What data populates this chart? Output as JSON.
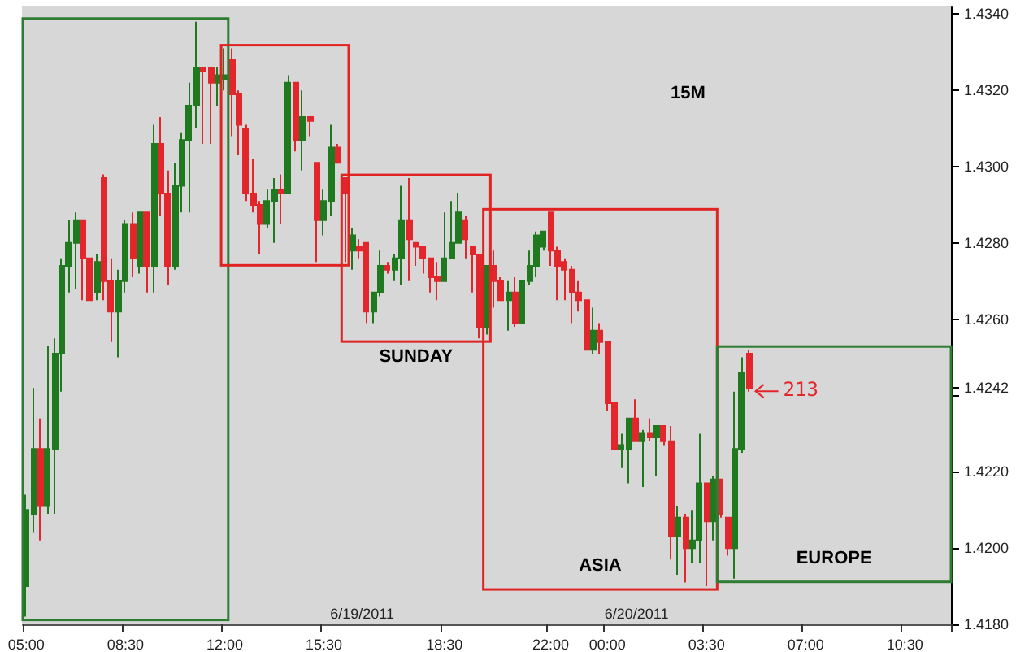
{
  "chart_data": {
    "type": "candlestick",
    "categories": [
      "05:00",
      null,
      null,
      null,
      null,
      null,
      null,
      null,
      null,
      null,
      null,
      null,
      null,
      null,
      "08:30",
      null,
      null,
      null,
      null,
      null,
      null,
      null,
      null,
      null,
      null,
      null,
      null,
      null,
      "12:00",
      null,
      null,
      null,
      null,
      null,
      null,
      null,
      null,
      null,
      null,
      null,
      null,
      null,
      "15:30",
      null,
      null,
      null,
      null,
      null,
      null,
      null,
      null,
      null,
      null,
      null,
      null,
      null,
      null,
      null,
      null,
      "18:30",
      null,
      null,
      null,
      null,
      null,
      null,
      null,
      null,
      null,
      null,
      null,
      null,
      null,
      null,
      "22:00",
      null,
      null,
      null,
      null,
      null,
      null,
      null,
      "00:00",
      null,
      null,
      null,
      null,
      null,
      null,
      null,
      null,
      null,
      null,
      null,
      null,
      null,
      "03:30",
      null,
      null,
      null,
      null,
      null,
      null,
      null,
      null,
      null,
      null,
      null,
      null,
      null,
      "07:00",
      null,
      null,
      null,
      null,
      null,
      null,
      null,
      null,
      null,
      null,
      null,
      null,
      null,
      "10:30",
      null,
      null,
      null,
      null,
      null,
      null
    ],
    "ohlc": [
      [
        1.419,
        1.4214,
        1.4182,
        1.421
      ],
      [
        1.4209,
        1.4242,
        1.4204,
        1.4226
      ],
      [
        1.4226,
        1.4234,
        1.4202,
        1.4211
      ],
      [
        1.4211,
        1.4253,
        1.4209,
        1.4226
      ],
      [
        1.4226,
        1.4255,
        1.4209,
        1.4251
      ],
      [
        1.4251,
        1.4276,
        1.4241,
        1.4274
      ],
      [
        1.4274,
        1.4286,
        1.4267,
        1.428
      ],
      [
        1.428,
        1.4288,
        1.4268,
        1.4286
      ],
      [
        1.4286,
        1.4286,
        1.4265,
        1.4276
      ],
      [
        1.4276,
        1.4276,
        1.4265,
        1.4265
      ],
      [
        1.4267,
        1.4277,
        1.4265,
        1.4275
      ],
      [
        1.4297,
        1.4298,
        1.4265,
        1.427
      ],
      [
        1.427,
        1.4276,
        1.4254,
        1.4262
      ],
      [
        1.4262,
        1.4273,
        1.425,
        1.427
      ],
      [
        1.427,
        1.4286,
        1.4267,
        1.4285
      ],
      [
        1.4285,
        1.4288,
        1.4271,
        1.4276
      ],
      [
        1.4274,
        1.4288,
        1.4272,
        1.4288
      ],
      [
        1.4288,
        1.4288,
        1.4267,
        1.4274
      ],
      [
        1.4274,
        1.4311,
        1.4267,
        1.4306
      ],
      [
        1.4306,
        1.4313,
        1.4287,
        1.4293
      ],
      [
        1.4293,
        1.4299,
        1.4269,
        1.4274
      ],
      [
        1.4274,
        1.4301,
        1.4273,
        1.4295
      ],
      [
        1.4295,
        1.4309,
        1.4288,
        1.4307
      ],
      [
        1.4307,
        1.4322,
        1.4288,
        1.4316
      ],
      [
        1.4316,
        1.4338,
        1.431,
        1.4326
      ],
      [
        1.4326,
        1.4326,
        1.4306,
        1.4325
      ],
      [
        1.4326,
        1.4326,
        1.4306,
        1.4322
      ],
      [
        1.4322,
        1.4326,
        1.4316,
        1.4324
      ],
      [
        1.4323,
        1.4331,
        1.432,
        1.4324
      ],
      [
        1.4328,
        1.4331,
        1.4308,
        1.4319
      ],
      [
        1.4319,
        1.432,
        1.4303,
        1.4311
      ],
      [
        1.431,
        1.4311,
        1.4291,
        1.4293
      ],
      [
        1.4293,
        1.4302,
        1.4288,
        1.429
      ],
      [
        1.429,
        1.4291,
        1.4277,
        1.4285
      ],
      [
        1.4285,
        1.4294,
        1.4284,
        1.4291
      ],
      [
        1.4291,
        1.4297,
        1.428,
        1.4294
      ],
      [
        1.4294,
        1.4298,
        1.4285,
        1.4293
      ],
      [
        1.4293,
        1.4324,
        1.4293,
        1.4322
      ],
      [
        1.4322,
        1.4322,
        1.4304,
        1.4307
      ],
      [
        1.4307,
        1.432,
        1.4299,
        1.4313
      ],
      [
        1.4313,
        1.4313,
        1.4308,
        1.4312
      ],
      [
        1.4301,
        1.4301,
        1.4275,
        1.4286
      ],
      [
        1.4286,
        1.4294,
        1.4282,
        1.4291
      ],
      [
        1.4291,
        1.4311,
        1.4287,
        1.4305
      ],
      [
        1.4305,
        1.4306,
        1.4301,
        1.4301
      ],
      [
        1.4297,
        1.4297,
        1.4275,
        1.4293
      ],
      [
        1.4278,
        1.4284,
        1.4273,
        1.4282
      ],
      [
        1.4279,
        1.4281,
        1.4276,
        1.4278
      ],
      [
        1.428,
        1.428,
        1.4259,
        1.4262
      ],
      [
        1.4262,
        1.4267,
        1.4259,
        1.4267
      ],
      [
        1.4267,
        1.4278,
        1.4266,
        1.4274
      ],
      [
        1.4274,
        1.4275,
        1.4272,
        1.4273
      ],
      [
        1.4273,
        1.4277,
        1.427,
        1.4276
      ],
      [
        1.4276,
        1.4295,
        1.4269,
        1.4286
      ],
      [
        1.4286,
        1.4297,
        1.427,
        1.4281
      ],
      [
        1.428,
        1.428,
        1.4274,
        1.4279
      ],
      [
        1.4279,
        1.4279,
        1.4272,
        1.4276
      ],
      [
        1.4276,
        1.4276,
        1.4267,
        1.4271
      ],
      [
        1.4271,
        1.4275,
        1.4265,
        1.427
      ],
      [
        1.427,
        1.4288,
        1.427,
        1.4276
      ],
      [
        1.4276,
        1.4291,
        1.4276,
        1.428
      ],
      [
        1.428,
        1.4293,
        1.428,
        1.4288
      ],
      [
        1.4286,
        1.4287,
        1.4276,
        1.4281
      ],
      [
        1.4279,
        1.4279,
        1.4267,
        1.4277
      ],
      [
        1.4277,
        1.4277,
        1.4255,
        1.4258
      ],
      [
        1.4258,
        1.4274,
        1.4256,
        1.4274
      ],
      [
        1.4274,
        1.4278,
        1.4263,
        1.427
      ],
      [
        1.427,
        1.4271,
        1.4265,
        1.4265
      ],
      [
        1.4265,
        1.427,
        1.4257,
        1.4267
      ],
      [
        1.4267,
        1.4271,
        1.4258,
        1.4259
      ],
      [
        1.4259,
        1.427,
        1.4259,
        1.427
      ],
      [
        1.427,
        1.4278,
        1.4269,
        1.4274
      ],
      [
        1.4274,
        1.4283,
        1.4271,
        1.4282
      ],
      [
        1.4279,
        1.4283,
        1.4278,
        1.4283
      ],
      [
        1.4288,
        1.4288,
        1.4274,
        1.4278
      ],
      [
        1.4278,
        1.4279,
        1.4265,
        1.4274
      ],
      [
        1.4275,
        1.4276,
        1.4265,
        1.4273
      ],
      [
        1.4273,
        1.4274,
        1.4259,
        1.4267
      ],
      [
        1.4267,
        1.427,
        1.4262,
        1.4265
      ],
      [
        1.4265,
        1.4265,
        1.4252,
        1.4252
      ],
      [
        1.4252,
        1.4263,
        1.4251,
        1.4257
      ],
      [
        1.4257,
        1.4259,
        1.4251,
        1.4254
      ],
      [
        1.4254,
        1.4254,
        1.4236,
        1.4238
      ],
      [
        1.4238,
        1.4238,
        1.4226,
        1.4226
      ],
      [
        1.4226,
        1.423,
        1.4221,
        1.4227
      ],
      [
        1.4226,
        1.4234,
        1.4217,
        1.4234
      ],
      [
        1.4234,
        1.4239,
        1.4228,
        1.4228
      ],
      [
        1.4228,
        1.4231,
        1.4216,
        1.423
      ],
      [
        1.423,
        1.4234,
        1.4228,
        1.4229
      ],
      [
        1.4229,
        1.4232,
        1.4219,
        1.4232
      ],
      [
        1.4232,
        1.4232,
        1.4227,
        1.4228
      ],
      [
        1.4228,
        1.4232,
        1.4197,
        1.4203
      ],
      [
        1.4203,
        1.4211,
        1.4193,
        1.4208
      ],
      [
        1.4208,
        1.4209,
        1.4191,
        1.42
      ],
      [
        1.42,
        1.421,
        1.4196,
        1.4202
      ],
      [
        1.4202,
        1.423,
        1.4196,
        1.4217
      ],
      [
        1.4217,
        1.4217,
        1.419,
        1.4207
      ],
      [
        1.4207,
        1.4219,
        1.4202,
        1.4218
      ],
      [
        1.4218,
        1.4218,
        1.4208,
        1.4209
      ],
      [
        1.4208,
        1.4208,
        1.4198,
        1.42
      ],
      [
        1.42,
        1.4241,
        1.4192,
        1.4226
      ],
      [
        1.4226,
        1.425,
        1.4225,
        1.4246
      ],
      [
        1.4251,
        1.4252,
        1.4241,
        1.4242
      ],
      null,
      null,
      null,
      null,
      null,
      null,
      null,
      null,
      null,
      null,
      null,
      null,
      null,
      null,
      null,
      null,
      null,
      null,
      null,
      null,
      null,
      null,
      null,
      null,
      null,
      null,
      null,
      null
    ],
    "colors": [
      "#1f7a1f",
      "#1f7a1f",
      "#e2262b",
      "#1f7a1f",
      "#1f7a1f",
      "#1f7a1f",
      "#1f7a1f",
      "#1f7a1f",
      "#e2262b",
      "#e2262b",
      "#1f7a1f",
      "#e2262b",
      "#e2262b",
      "#1f7a1f",
      "#1f7a1f",
      "#e2262b",
      "#1f7a1f",
      "#e2262b",
      "#1f7a1f",
      "#e2262b",
      "#e2262b",
      "#1f7a1f",
      "#1f7a1f",
      "#1f7a1f",
      "#1f7a1f",
      "#e2262b",
      "#e2262b",
      "#1f7a1f",
      "#1f7a1f",
      "#e2262b",
      "#e2262b",
      "#e2262b",
      "#e2262b",
      "#e2262b",
      "#1f7a1f",
      "#1f7a1f",
      "#e2262b",
      "#1f7a1f",
      "#e2262b",
      "#1f7a1f",
      "#e2262b",
      "#e2262b",
      "#1f7a1f",
      "#1f7a1f",
      "#e2262b",
      "#e2262b",
      "#1f7a1f",
      "#e2262b",
      "#e2262b",
      "#1f7a1f",
      "#1f7a1f",
      "#e2262b",
      "#1f7a1f",
      "#1f7a1f",
      "#e2262b",
      "#e2262b",
      "#e2262b",
      "#e2262b",
      "#e2262b",
      "#1f7a1f",
      "#1f7a1f",
      "#1f7a1f",
      "#e2262b",
      "#e2262b",
      "#e2262b",
      "#1f7a1f",
      "#e2262b",
      "#e2262b",
      "#1f7a1f",
      "#e2262b",
      "#1f7a1f",
      "#1f7a1f",
      "#1f7a1f",
      "#1f7a1f",
      "#e2262b",
      "#e2262b",
      "#e2262b",
      "#e2262b",
      "#e2262b",
      "#e2262b",
      "#1f7a1f",
      "#e2262b",
      "#e2262b",
      "#e2262b",
      "#1f7a1f",
      "#1f7a1f",
      "#e2262b",
      "#1f7a1f",
      "#e2262b",
      "#1f7a1f",
      "#e2262b",
      "#e2262b",
      "#1f7a1f",
      "#e2262b",
      "#1f7a1f",
      "#1f7a1f",
      "#e2262b",
      "#1f7a1f",
      "#e2262b",
      "#e2262b",
      "#1f7a1f",
      "#1f7a1f",
      "#e2262b",
      null,
      null,
      null,
      null,
      null,
      null,
      null,
      null,
      null,
      null,
      null,
      null,
      null,
      null,
      null,
      null,
      null,
      null,
      null,
      null,
      null,
      null,
      null,
      null,
      null,
      null,
      null,
      null
    ],
    "ylim": [
      1.418,
      1.4342
    ],
    "yticks": [
      {
        "value": 1.418,
        "label": "1.4180"
      },
      {
        "value": 1.42,
        "label": "1.4200"
      },
      {
        "value": 1.422,
        "label": "1.4220"
      },
      {
        "value": 1.424,
        "label": null
      },
      {
        "value": 1.4242,
        "label": "1.4242"
      },
      {
        "value": 1.426,
        "label": "1.4260"
      },
      {
        "value": 1.428,
        "label": "1.4280"
      },
      {
        "value": 1.43,
        "label": "1.4300"
      },
      {
        "value": 1.432,
        "label": "1.4320"
      },
      {
        "value": 1.434,
        "label": "1.4340"
      }
    ],
    "annotations": [
      "15M",
      "213",
      "6/19/2011",
      "6/20/2011",
      "SUNDAY",
      "ASIA",
      "EUROPE"
    ]
  }
}
